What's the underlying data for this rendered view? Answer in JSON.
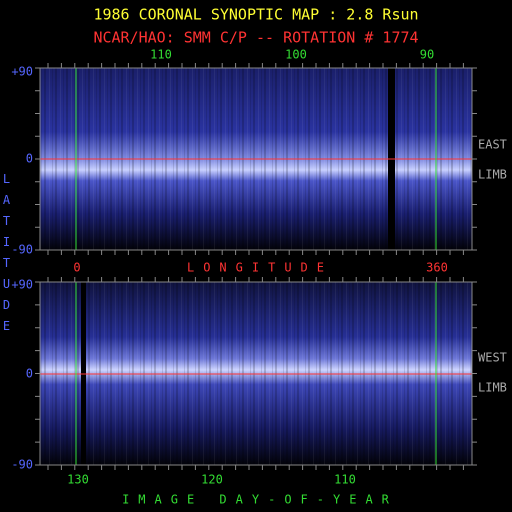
{
  "header": {
    "title": "1986 CORONAL SYNOPTIC MAP : 2.8 Rsun",
    "subtitle": "NCAR/HAO: SMM C/P -- ROTATION # 1774"
  },
  "top_axis": {
    "labels": [
      "110",
      "100",
      "90"
    ]
  },
  "latitude_labels": {
    "top_panel": [
      "+90",
      "0",
      "-90"
    ],
    "bottom_panel": [
      "+90",
      "0",
      "-90"
    ]
  },
  "y_axis_title": "LATITUDE",
  "longitude_axis": {
    "start": "0",
    "title": "LONGITUDE",
    "end": "360"
  },
  "limb_labels": {
    "east": [
      "EAST",
      "LIMB"
    ],
    "west": [
      "WEST",
      "LIMB"
    ]
  },
  "bottom_axis": {
    "labels": [
      "130",
      "120",
      "110"
    ],
    "title": "IMAGE DAY-OF-YEAR"
  }
}
